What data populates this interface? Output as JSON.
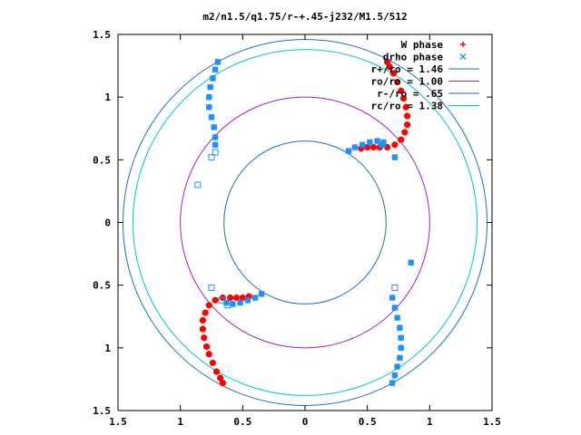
{
  "chart_data": {
    "type": "scatter",
    "title": "m2/n1.5/q1.75/r-+.45-j232/M1.5/512",
    "xlim": [
      -1.5,
      1.5
    ],
    "ylim": [
      -1.5,
      1.5
    ],
    "x_ticks": [
      {
        "value": -1.5,
        "label": "1.5"
      },
      {
        "value": -1,
        "label": "1"
      },
      {
        "value": -0.5,
        "label": "0.5"
      },
      {
        "value": 0,
        "label": "0"
      },
      {
        "value": 0.5,
        "label": "0.5"
      },
      {
        "value": 1,
        "label": "1"
      },
      {
        "value": 1.5,
        "label": "1.5"
      }
    ],
    "y_ticks": [
      {
        "value": 1.5,
        "label": "1.5"
      },
      {
        "value": 1,
        "label": "1"
      },
      {
        "value": 0.5,
        "label": "0.5"
      },
      {
        "value": 0,
        "label": "0"
      },
      {
        "value": -0.5,
        "label": "0.5"
      },
      {
        "value": -1,
        "label": "1"
      },
      {
        "value": -1.5,
        "label": "1.5"
      }
    ],
    "grid": false,
    "legend_position": "top-right",
    "series": [
      {
        "name": "W phase",
        "kind": "points",
        "marker": "plus",
        "color": "#ff0000",
        "points": [
          [
            0.45,
            0.59
          ],
          [
            0.5,
            0.6
          ],
          [
            0.55,
            0.6
          ],
          [
            0.6,
            0.6
          ],
          [
            0.66,
            0.6
          ],
          [
            0.72,
            0.62
          ],
          [
            0.77,
            0.66
          ],
          [
            0.8,
            0.72
          ],
          [
            0.82,
            0.78
          ],
          [
            0.82,
            0.85
          ],
          [
            0.81,
            0.92
          ],
          [
            0.79,
            0.99
          ],
          [
            0.77,
            1.05
          ],
          [
            0.74,
            1.12
          ],
          [
            0.71,
            1.19
          ],
          [
            0.68,
            1.24
          ],
          [
            0.66,
            1.28
          ],
          [
            -0.45,
            -0.59
          ],
          [
            -0.5,
            -0.6
          ],
          [
            -0.55,
            -0.6
          ],
          [
            -0.6,
            -0.6
          ],
          [
            -0.66,
            -0.6
          ],
          [
            -0.72,
            -0.62
          ],
          [
            -0.77,
            -0.66
          ],
          [
            -0.8,
            -0.72
          ],
          [
            -0.82,
            -0.78
          ],
          [
            -0.82,
            -0.85
          ],
          [
            -0.81,
            -0.92
          ],
          [
            -0.79,
            -0.99
          ],
          [
            -0.77,
            -1.05
          ],
          [
            -0.74,
            -1.12
          ],
          [
            -0.71,
            -1.19
          ],
          [
            -0.68,
            -1.24
          ],
          [
            -0.66,
            -1.28
          ]
        ]
      },
      {
        "name": "drho phase",
        "kind": "points",
        "marker": "cross",
        "color": "#1e90ff",
        "points": [
          [
            -0.7,
            1.28
          ],
          [
            -0.72,
            1.22
          ],
          [
            -0.74,
            1.15
          ],
          [
            -0.76,
            1.08
          ],
          [
            -0.77,
            1.0
          ],
          [
            -0.77,
            0.92
          ],
          [
            -0.75,
            0.84
          ],
          [
            -0.73,
            0.76
          ],
          [
            -0.72,
            0.68
          ],
          [
            -0.72,
            0.62
          ],
          [
            0.35,
            0.57
          ],
          [
            0.4,
            0.6
          ],
          [
            0.46,
            0.62
          ],
          [
            0.52,
            0.64
          ],
          [
            0.58,
            0.65
          ],
          [
            0.63,
            0.64
          ],
          [
            0.62,
            0.62
          ],
          [
            0.72,
            0.52
          ],
          [
            0.85,
            -0.32
          ],
          [
            0.7,
            -0.6
          ],
          [
            0.72,
            -0.68
          ],
          [
            0.74,
            -0.76
          ],
          [
            0.76,
            -0.84
          ],
          [
            0.77,
            -0.92
          ],
          [
            0.77,
            -1.0
          ],
          [
            0.76,
            -1.08
          ],
          [
            0.74,
            -1.15
          ],
          [
            0.72,
            -1.22
          ],
          [
            0.7,
            -1.28
          ],
          [
            -0.35,
            -0.57
          ],
          [
            -0.4,
            -0.6
          ],
          [
            -0.46,
            -0.62
          ],
          [
            -0.52,
            -0.64
          ],
          [
            -0.58,
            -0.65
          ],
          [
            -0.63,
            -0.64
          ]
        ]
      },
      {
        "name": "",
        "kind": "points",
        "marker": "square",
        "color": "#1e90ff",
        "points": [
          [
            -0.75,
            0.52
          ],
          [
            -0.72,
            0.56
          ],
          [
            -0.86,
            0.3
          ],
          [
            -0.75,
            -0.52
          ],
          [
            -0.67,
            -0.62
          ],
          [
            -0.62,
            -0.66
          ],
          [
            0.62,
            0.62
          ],
          [
            0.72,
            -0.52
          ]
        ]
      },
      {
        "name": "r+/ro = 1.46",
        "kind": "circle",
        "radius": 1.46,
        "color": "#1a6fc4"
      },
      {
        "name": "ro/ro = 1.00",
        "kind": "circle",
        "radius": 1.0,
        "color": "#a020c0"
      },
      {
        "name": "r-/ro = .65",
        "kind": "circle",
        "radius": 0.65,
        "color": "#1a6fc4"
      },
      {
        "name": "rc/ro = 1.38",
        "kind": "circle",
        "radius": 1.38,
        "color": "#00c8c8"
      }
    ]
  }
}
